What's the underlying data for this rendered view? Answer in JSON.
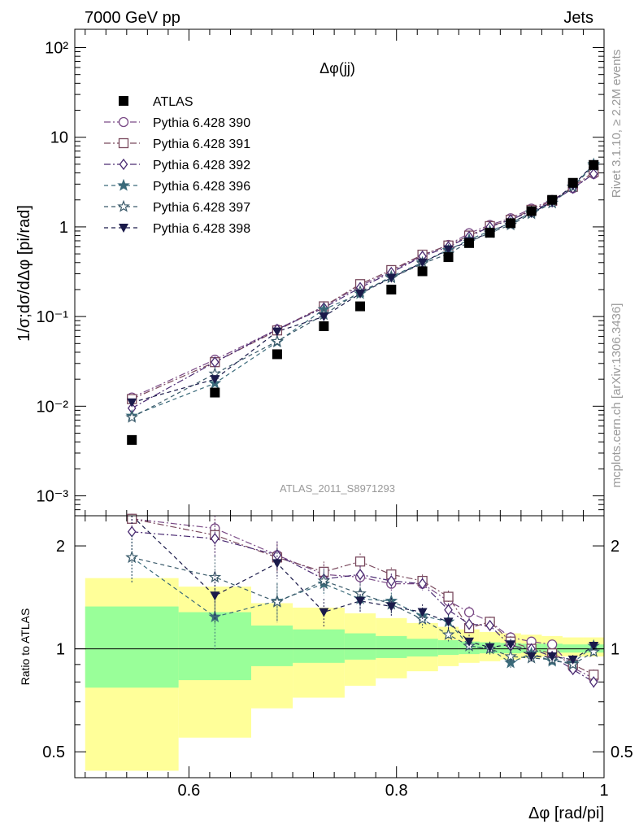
{
  "header": {
    "left": "7000 GeV pp",
    "right": "Jets"
  },
  "side_labels": {
    "top": "Rivet 3.1.10, ≥ 2.2M events",
    "bottom": "mcplots.cern.ch [arXiv:1306.3436]"
  },
  "watermark": "ATLAS_2011_S8971293",
  "chart_data": [
    {
      "type": "scatter",
      "panel": "main",
      "title": "Δφ(jj)",
      "ylabel": "1/σ;dσ/dΔφ [pi/rad]",
      "yscale": "log",
      "ylim": [
        0.0006,
        160
      ],
      "xlim": [
        0.49,
        1.0
      ],
      "ytick_labels": [
        "10⁻³",
        "10⁻²",
        "10⁻¹",
        "1",
        "10",
        "10²"
      ],
      "legend_position": "top-left",
      "x": [
        0.545,
        0.625,
        0.685,
        0.73,
        0.765,
        0.795,
        0.825,
        0.85,
        0.87,
        0.89,
        0.91,
        0.93,
        0.95,
        0.97,
        0.99
      ],
      "series": [
        {
          "name": "ATLAS",
          "color": "#000000",
          "marker": "square-filled",
          "line": "none",
          "values": [
            0.0042,
            0.0142,
            0.038,
            0.078,
            0.13,
            0.2,
            0.32,
            0.46,
            0.66,
            0.86,
            1.1,
            1.5,
            2.0,
            3.1,
            4.9
          ]
        },
        {
          "name": "Pythia 6.428 390",
          "color": "#7a4a86",
          "marker": "circle-open",
          "line": "dashdot",
          "values": [
            0.0125,
            0.033,
            0.072,
            0.13,
            0.22,
            0.32,
            0.48,
            0.63,
            0.85,
            1.05,
            1.25,
            1.6,
            2.0,
            2.7,
            3.9
          ]
        },
        {
          "name": "Pythia 6.428 391",
          "color": "#7a4a5e",
          "marker": "square-open",
          "line": "dashdot",
          "values": [
            0.012,
            0.031,
            0.07,
            0.13,
            0.23,
            0.33,
            0.49,
            0.62,
            0.8,
            1.02,
            1.2,
            1.55,
            1.95,
            2.8,
            4.1
          ]
        },
        {
          "name": "Pythia 6.428 392",
          "color": "#4a2a72",
          "marker": "diamond-open",
          "line": "dashdot",
          "values": [
            0.0095,
            0.031,
            0.072,
            0.125,
            0.21,
            0.31,
            0.47,
            0.6,
            0.78,
            1.0,
            1.2,
            1.5,
            1.9,
            2.7,
            3.9
          ]
        },
        {
          "name": "Pythia 6.428 396",
          "color": "#3a6a7a",
          "marker": "star-filled",
          "line": "dashed",
          "values": [
            0.0078,
            0.018,
            0.052,
            0.12,
            0.18,
            0.28,
            0.4,
            0.55,
            0.72,
            0.9,
            1.1,
            1.45,
            1.85,
            2.8,
            5.0
          ]
        },
        {
          "name": "Pythia 6.428 397",
          "color": "#3a5a6a",
          "marker": "star-open",
          "line": "dashed",
          "values": [
            0.0075,
            0.023,
            0.053,
            0.105,
            0.19,
            0.27,
            0.39,
            0.5,
            0.68,
            0.86,
            1.05,
            1.4,
            1.85,
            2.8,
            4.8
          ]
        },
        {
          "name": "Pythia 6.428 398",
          "color": "#1a1a4a",
          "marker": "triangle-down-filled",
          "line": "dashed",
          "values": [
            0.011,
            0.02,
            0.068,
            0.1,
            0.18,
            0.27,
            0.4,
            0.56,
            0.69,
            0.87,
            1.12,
            1.42,
            1.9,
            2.9,
            5.0
          ]
        }
      ]
    },
    {
      "type": "scatter",
      "panel": "ratio",
      "ylabel": "Ratio to ATLAS",
      "xlabel": "Δφ [rad/pi]",
      "yscale": "log",
      "ylim": [
        0.42,
        2.45
      ],
      "yticks": [
        0.5,
        1,
        2
      ],
      "ytick_labels": [
        "0.5",
        "1",
        "2"
      ],
      "xticks": [
        0.6,
        0.8,
        1.0
      ],
      "xtick_labels": [
        "0.6",
        "0.8",
        "1"
      ],
      "reference_line": 1,
      "x": [
        0.545,
        0.625,
        0.685,
        0.73,
        0.765,
        0.795,
        0.825,
        0.85,
        0.87,
        0.89,
        0.91,
        0.93,
        0.95,
        0.97,
        0.99
      ],
      "bands": {
        "edges": [
          0.5,
          0.59,
          0.66,
          0.7,
          0.75,
          0.78,
          0.81,
          0.84,
          0.86,
          0.88,
          0.9,
          0.92,
          0.94,
          0.96,
          0.98,
          1.0
        ],
        "yellow_color": "#ffff99",
        "green_color": "#99ff99",
        "yellow_low": [
          0.44,
          0.55,
          0.67,
          0.72,
          0.78,
          0.82,
          0.86,
          0.89,
          0.91,
          0.92,
          0.93,
          0.94,
          0.95,
          0.95,
          0.95
        ],
        "yellow_high": [
          1.61,
          1.52,
          1.36,
          1.32,
          1.27,
          1.23,
          1.19,
          1.16,
          1.14,
          1.12,
          1.11,
          1.1,
          1.09,
          1.08,
          1.08
        ],
        "green_low": [
          0.77,
          0.81,
          0.89,
          0.91,
          0.93,
          0.94,
          0.95,
          0.96,
          0.965,
          0.97,
          0.97,
          0.975,
          0.975,
          0.975,
          0.975
        ],
        "green_high": [
          1.33,
          1.28,
          1.17,
          1.14,
          1.11,
          1.09,
          1.07,
          1.06,
          1.05,
          1.045,
          1.04,
          1.035,
          1.035,
          1.03,
          1.03
        ]
      },
      "series": [
        {
          "name": "Pythia 6.428 390",
          "values": [
            2.4,
            2.25,
            1.88,
            1.65,
            1.62,
            1.55,
            1.55,
            1.38,
            1.28,
            1.2,
            1.08,
            1.05,
            1.03,
            0.88,
            0.82
          ]
        },
        {
          "name": "Pythia 6.428 391",
          "values": [
            2.4,
            2.15,
            1.85,
            1.68,
            1.8,
            1.65,
            1.58,
            1.42,
            1.15,
            1.2,
            1.05,
            1.0,
            0.97,
            0.9,
            0.84
          ]
        },
        {
          "name": "Pythia 6.428 392",
          "values": [
            2.2,
            2.1,
            1.88,
            1.6,
            1.65,
            1.58,
            1.55,
            1.3,
            1.18,
            1.17,
            1.02,
            1.0,
            0.95,
            0.87,
            0.8
          ]
        },
        {
          "name": "Pythia 6.428 396",
          "values": [
            1.85,
            1.24,
            1.38,
            1.55,
            1.4,
            1.38,
            1.25,
            1.2,
            1.02,
            1.0,
            0.91,
            0.97,
            0.92,
            0.91,
            1.02
          ]
        },
        {
          "name": "Pythia 6.428 397",
          "values": [
            1.85,
            1.62,
            1.37,
            1.58,
            1.45,
            1.35,
            1.22,
            1.1,
            1.02,
            1.0,
            0.95,
            0.94,
            0.93,
            0.9,
            0.98
          ]
        },
        {
          "name": "Pythia 6.428 398",
          "values": [
            2.6,
            1.43,
            1.78,
            1.28,
            1.38,
            1.33,
            1.28,
            1.2,
            1.05,
            1.01,
            1.03,
            0.95,
            0.95,
            0.93,
            1.02
          ]
        }
      ],
      "error_halfwidths": [
        0.3,
        0.25,
        0.18,
        0.12,
        0.1,
        0.08,
        0.07,
        0.06,
        0.05,
        0.04,
        0.04,
        0.03,
        0.03,
        0.03,
        0.03
      ]
    }
  ]
}
